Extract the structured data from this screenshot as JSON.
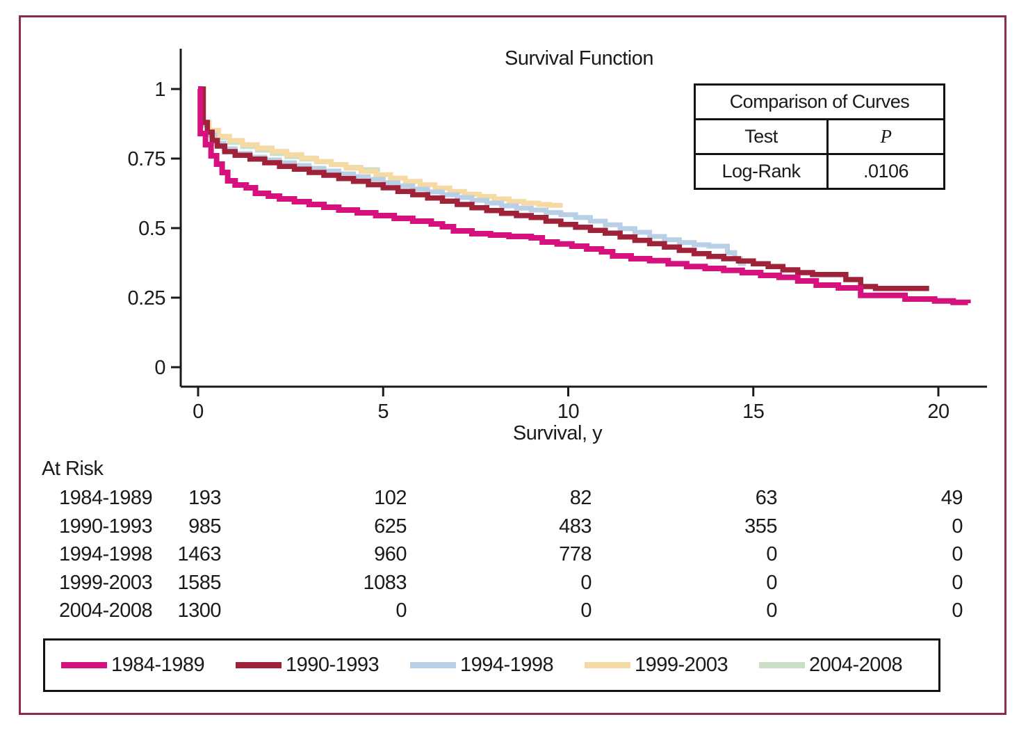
{
  "figure": {
    "title": "Survival Function",
    "border_color": "#8C2D45"
  },
  "comparison_table": {
    "title": "Comparison of Curves",
    "col1_header": "Test",
    "col2_header": "P",
    "row_test": "Log-Rank",
    "row_p": ".0106"
  },
  "at_risk": {
    "label": "At Risk",
    "rows": [
      {
        "label": "1984-1989",
        "values": [
          "193",
          "102",
          "82",
          "63",
          "49"
        ]
      },
      {
        "label": "1990-1993",
        "values": [
          "985",
          "625",
          "483",
          "355",
          "0"
        ]
      },
      {
        "label": "1994-1998",
        "values": [
          "1463",
          "960",
          "778",
          "0",
          "0"
        ]
      },
      {
        "label": "1999-2003",
        "values": [
          "1585",
          "1083",
          "0",
          "0",
          "0"
        ]
      },
      {
        "label": "2004-2008",
        "values": [
          "1300",
          "0",
          "0",
          "0",
          "0"
        ]
      }
    ]
  },
  "chart_data": {
    "type": "line",
    "subtype": "kaplan-meier-step",
    "title": "Survival Function",
    "xlabel": "Survival, y",
    "ylabel": "",
    "xlim": [
      0,
      21.5
    ],
    "ylim": [
      0,
      1.05
    ],
    "x_ticks": [
      0,
      5,
      10,
      15,
      20
    ],
    "x_tick_labels": [
      "0",
      "5",
      "10",
      "15",
      "20"
    ],
    "y_ticks": [
      0,
      0.25,
      0.5,
      0.75,
      1
    ],
    "y_tick_labels": [
      "0",
      "0.25",
      "0.5",
      "0.75",
      "1"
    ],
    "grid": false,
    "legend_position": "bottom",
    "annotation": {
      "test": "Log-Rank",
      "p_value": ".0106"
    },
    "series": [
      {
        "name": "1984-1989",
        "color": "#D6117E",
        "stroke_width": 8,
        "points": [
          [
            0,
            1.0
          ],
          [
            0.06,
            0.84
          ],
          [
            0.2,
            0.8
          ],
          [
            0.35,
            0.76
          ],
          [
            0.5,
            0.73
          ],
          [
            0.65,
            0.7
          ],
          [
            0.8,
            0.67
          ],
          [
            1.0,
            0.655
          ],
          [
            1.3,
            0.645
          ],
          [
            1.55,
            0.625
          ],
          [
            1.9,
            0.615
          ],
          [
            2.2,
            0.605
          ],
          [
            2.6,
            0.595
          ],
          [
            3.0,
            0.585
          ],
          [
            3.4,
            0.575
          ],
          [
            3.8,
            0.565
          ],
          [
            4.3,
            0.555
          ],
          [
            4.8,
            0.545
          ],
          [
            5.3,
            0.535
          ],
          [
            5.8,
            0.525
          ],
          [
            6.3,
            0.515
          ],
          [
            6.6,
            0.505
          ],
          [
            6.9,
            0.49
          ],
          [
            7.4,
            0.48
          ],
          [
            7.9,
            0.475
          ],
          [
            8.4,
            0.47
          ],
          [
            9.0,
            0.465
          ],
          [
            9.3,
            0.45
          ],
          [
            9.7,
            0.443
          ],
          [
            10.1,
            0.435
          ],
          [
            10.5,
            0.425
          ],
          [
            10.9,
            0.415
          ],
          [
            11.2,
            0.4
          ],
          [
            11.7,
            0.39
          ],
          [
            12.2,
            0.383
          ],
          [
            12.7,
            0.372
          ],
          [
            13.2,
            0.362
          ],
          [
            13.7,
            0.355
          ],
          [
            14.2,
            0.348
          ],
          [
            14.7,
            0.34
          ],
          [
            15.2,
            0.33
          ],
          [
            15.7,
            0.323
          ],
          [
            16.2,
            0.31
          ],
          [
            16.7,
            0.295
          ],
          [
            17.3,
            0.285
          ],
          [
            17.9,
            0.258
          ],
          [
            19.1,
            0.245
          ],
          [
            19.9,
            0.238
          ],
          [
            20.4,
            0.233
          ],
          [
            20.8,
            0.23
          ]
        ]
      },
      {
        "name": "1990-1993",
        "color": "#A02239",
        "stroke_width": 7.5,
        "points": [
          [
            0,
            1.0
          ],
          [
            0.14,
            0.88
          ],
          [
            0.25,
            0.845
          ],
          [
            0.38,
            0.815
          ],
          [
            0.52,
            0.795
          ],
          [
            0.72,
            0.775
          ],
          [
            1.0,
            0.762
          ],
          [
            1.4,
            0.748
          ],
          [
            1.8,
            0.735
          ],
          [
            2.2,
            0.722
          ],
          [
            2.6,
            0.712
          ],
          [
            3.0,
            0.7
          ],
          [
            3.4,
            0.69
          ],
          [
            3.8,
            0.678
          ],
          [
            4.2,
            0.668
          ],
          [
            4.6,
            0.656
          ],
          [
            5.0,
            0.645
          ],
          [
            5.4,
            0.632
          ],
          [
            5.8,
            0.62
          ],
          [
            6.2,
            0.608
          ],
          [
            6.6,
            0.597
          ],
          [
            7.0,
            0.585
          ],
          [
            7.4,
            0.573
          ],
          [
            7.8,
            0.563
          ],
          [
            8.2,
            0.553
          ],
          [
            8.6,
            0.545
          ],
          [
            9.0,
            0.538
          ],
          [
            9.4,
            0.525
          ],
          [
            9.8,
            0.513
          ],
          [
            10.2,
            0.503
          ],
          [
            10.6,
            0.492
          ],
          [
            11.0,
            0.482
          ],
          [
            11.4,
            0.468
          ],
          [
            11.8,
            0.456
          ],
          [
            12.2,
            0.444
          ],
          [
            12.6,
            0.432
          ],
          [
            13.0,
            0.42
          ],
          [
            13.4,
            0.408
          ],
          [
            13.8,
            0.398
          ],
          [
            14.2,
            0.39
          ],
          [
            14.6,
            0.382
          ],
          [
            15.0,
            0.372
          ],
          [
            15.4,
            0.362
          ],
          [
            15.8,
            0.35
          ],
          [
            16.2,
            0.34
          ],
          [
            16.6,
            0.333
          ],
          [
            17.5,
            0.315
          ],
          [
            17.9,
            0.29
          ],
          [
            18.3,
            0.283
          ],
          [
            19.75,
            0.283
          ]
        ]
      },
      {
        "name": "1994-1998",
        "color": "#B9CFE6",
        "stroke_width": 7,
        "points": [
          [
            0,
            1.0
          ],
          [
            0.1,
            0.87
          ],
          [
            0.25,
            0.835
          ],
          [
            0.45,
            0.805
          ],
          [
            0.7,
            0.785
          ],
          [
            1.0,
            0.768
          ],
          [
            1.4,
            0.755
          ],
          [
            1.8,
            0.745
          ],
          [
            2.2,
            0.735
          ],
          [
            2.6,
            0.725
          ],
          [
            3.0,
            0.715
          ],
          [
            3.4,
            0.705
          ],
          [
            3.8,
            0.695
          ],
          [
            4.2,
            0.685
          ],
          [
            4.6,
            0.675
          ],
          [
            5.0,
            0.663
          ],
          [
            5.4,
            0.652
          ],
          [
            5.8,
            0.64
          ],
          [
            6.2,
            0.63
          ],
          [
            6.6,
            0.62
          ],
          [
            7.0,
            0.61
          ],
          [
            7.4,
            0.6
          ],
          [
            7.8,
            0.59
          ],
          [
            8.2,
            0.58
          ],
          [
            8.6,
            0.572
          ],
          [
            9.0,
            0.565
          ],
          [
            9.4,
            0.556
          ],
          [
            9.8,
            0.548
          ],
          [
            10.2,
            0.538
          ],
          [
            10.6,
            0.525
          ],
          [
            11.0,
            0.512
          ],
          [
            11.4,
            0.498
          ],
          [
            11.8,
            0.485
          ],
          [
            12.2,
            0.47
          ],
          [
            12.6,
            0.458
          ],
          [
            13.0,
            0.448
          ],
          [
            13.4,
            0.44
          ],
          [
            13.8,
            0.435
          ],
          [
            14.3,
            0.412
          ],
          [
            14.5,
            0.39
          ],
          [
            14.65,
            0.373
          ],
          [
            14.8,
            0.373
          ]
        ]
      },
      {
        "name": "1999-2003",
        "color": "#F5DAA4",
        "stroke_width": 7,
        "points": [
          [
            0,
            1.0
          ],
          [
            0.1,
            0.88
          ],
          [
            0.3,
            0.852
          ],
          [
            0.55,
            0.83
          ],
          [
            0.85,
            0.815
          ],
          [
            1.2,
            0.8
          ],
          [
            1.6,
            0.788
          ],
          [
            2.0,
            0.776
          ],
          [
            2.4,
            0.764
          ],
          [
            2.8,
            0.752
          ],
          [
            3.2,
            0.74
          ],
          [
            3.6,
            0.728
          ],
          [
            4.0,
            0.716
          ],
          [
            4.4,
            0.704
          ],
          [
            4.8,
            0.692
          ],
          [
            5.2,
            0.68
          ],
          [
            5.6,
            0.668
          ],
          [
            6.0,
            0.656
          ],
          [
            6.4,
            0.644
          ],
          [
            6.8,
            0.632
          ],
          [
            7.2,
            0.622
          ],
          [
            7.6,
            0.614
          ],
          [
            8.0,
            0.605
          ],
          [
            8.4,
            0.596
          ],
          [
            8.8,
            0.59
          ],
          [
            9.2,
            0.585
          ],
          [
            9.5,
            0.582
          ],
          [
            9.85,
            0.582
          ]
        ]
      },
      {
        "name": "2004-2008",
        "color": "#CBDFC6",
        "stroke_width": 7,
        "points": [
          [
            0,
            1.0
          ],
          [
            0.1,
            0.87
          ],
          [
            0.3,
            0.845
          ],
          [
            0.55,
            0.825
          ],
          [
            0.85,
            0.808
          ],
          [
            1.2,
            0.793
          ],
          [
            1.6,
            0.78
          ],
          [
            2.0,
            0.768
          ],
          [
            2.4,
            0.757
          ],
          [
            2.8,
            0.748
          ],
          [
            3.2,
            0.738
          ],
          [
            3.6,
            0.728
          ],
          [
            4.0,
            0.718
          ],
          [
            4.4,
            0.71
          ],
          [
            4.85,
            0.702
          ]
        ]
      }
    ]
  }
}
